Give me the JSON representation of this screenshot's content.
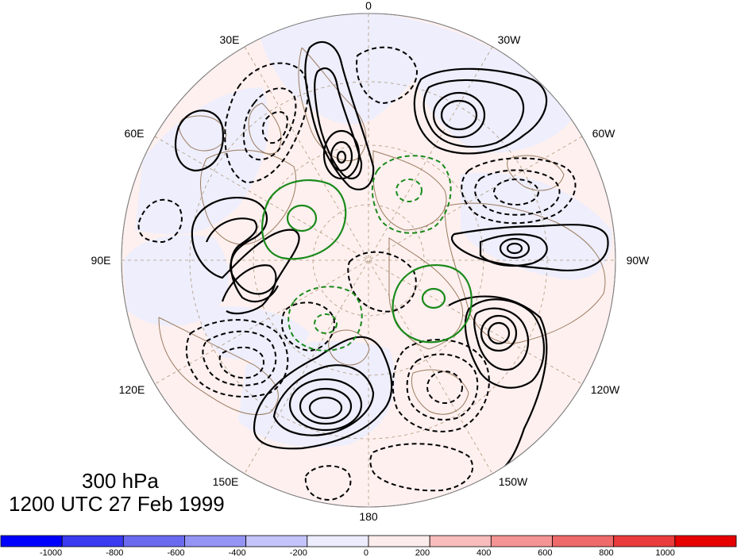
{
  "map": {
    "projection": "north polar stereographic",
    "longitude_labels": [
      "0",
      "30W",
      "60W",
      "90W",
      "120W",
      "150W",
      "180",
      "150E",
      "120E",
      "90E",
      "60E",
      "30E"
    ],
    "contours": {
      "positive_style": "solid black",
      "negative_style": "dashed black",
      "highlight_color": "#1a8a1a"
    },
    "shading_palette": [
      "#0000ff",
      "#3a3af0",
      "#6a6af0",
      "#9494f4",
      "#c4c4fa",
      "#ececfc",
      "#fdecec",
      "#f8bcbc",
      "#f49494",
      "#ef6a6a",
      "#ea3c3c",
      "#e60000"
    ]
  },
  "caption": {
    "level": "300 hPa",
    "time": "1200 UTC 27 Feb 1999"
  },
  "colorbar": {
    "tick_labels": [
      "-1000",
      "-800",
      "-600",
      "-400",
      "-200",
      "0",
      "200",
      "400",
      "600",
      "800",
      "1000"
    ]
  }
}
